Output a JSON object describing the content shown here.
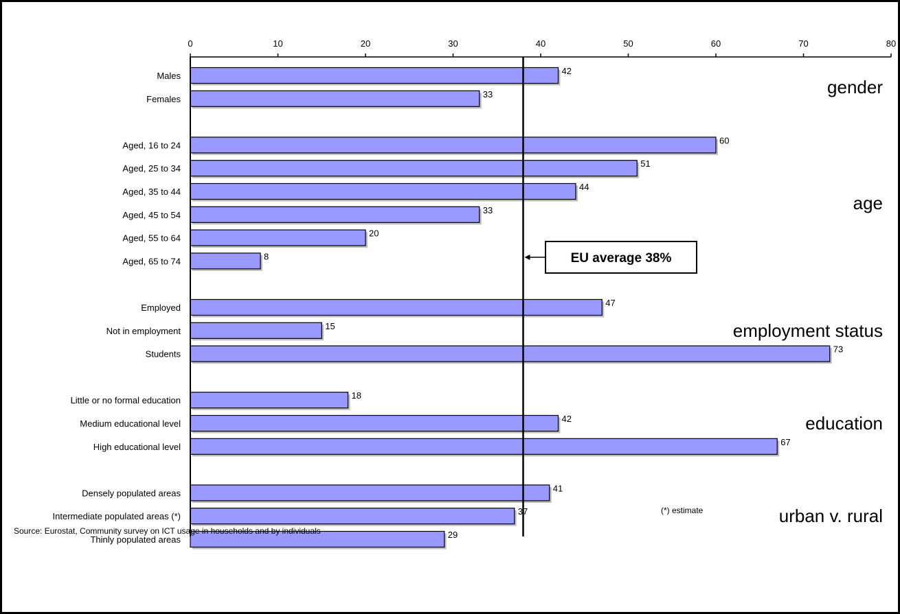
{
  "chart_data": {
    "type": "bar",
    "orientation": "horizontal",
    "xlim": [
      0,
      80
    ],
    "xticks": [
      0,
      10,
      20,
      30,
      40,
      50,
      60,
      70,
      80
    ],
    "x_axis_position": "top",
    "grid": false,
    "bar_color": "#9999ff",
    "reference_line": {
      "value": 38,
      "label": "EU average 38%"
    },
    "groups": [
      {
        "label": "gender",
        "items": [
          {
            "category": "Males",
            "value": 42
          },
          {
            "category": "Females",
            "value": 33
          }
        ]
      },
      {
        "label": "age",
        "items": [
          {
            "category": "Aged, 16 to 24",
            "value": 60
          },
          {
            "category": "Aged, 25 to 34",
            "value": 51
          },
          {
            "category": "Aged, 35 to 44",
            "value": 44
          },
          {
            "category": "Aged, 45 to 54",
            "value": 33
          },
          {
            "category": "Aged, 55 to 64",
            "value": 20
          },
          {
            "category": "Aged, 65 to 74",
            "value": 8
          }
        ]
      },
      {
        "label": "employment status",
        "items": [
          {
            "category": "Employed",
            "value": 47
          },
          {
            "category": "Not in employment",
            "value": 15
          },
          {
            "category": "Students",
            "value": 73
          }
        ]
      },
      {
        "label": "education",
        "items": [
          {
            "category": "Little or no formal education",
            "value": 18
          },
          {
            "category": "Medium educational level",
            "value": 42
          },
          {
            "category": "High educational level",
            "value": 67
          }
        ]
      },
      {
        "label": "urban v. rural",
        "items": [
          {
            "category": "Densely populated areas",
            "value": 41
          },
          {
            "category": "Intermediate populated areas (*)",
            "value": 37
          },
          {
            "category": "Thinly populated areas",
            "value": 29
          }
        ]
      }
    ]
  },
  "notes": {
    "estimate": "(*) estimate",
    "source": "Source: Eurostat, Community survey on ICT usage in households and by  individuals"
  }
}
